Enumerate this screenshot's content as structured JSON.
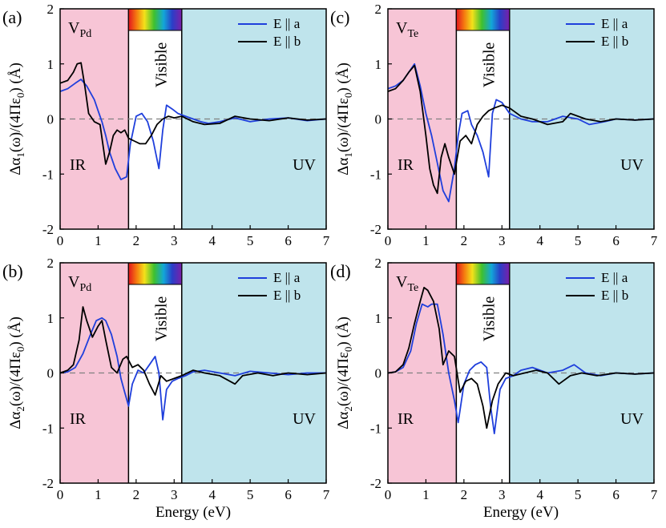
{
  "colors": {
    "ir_region": "#f7c5d6",
    "visible_region": "#ffffff",
    "uv_region": "#bfe4ec",
    "series_a": "#1f3fdc",
    "series_b": "#000000",
    "zero_line": "#808080"
  },
  "x_axis_title": "Energy (eV)",
  "y_axis_title_1": "Δα",
  "y_axis_title_2": "(ω)/(4Πε",
  "y_axis_title_3": ") (Å)",
  "chart_data": [
    {
      "type": "line",
      "panel_label": "(a)",
      "vacancy_main": "V",
      "vacancy_sub": "Pd",
      "y_sub": "1",
      "eps_sub": "0",
      "regions": [
        {
          "name": "IR",
          "x": [
            0,
            1.8
          ]
        },
        {
          "name": "Visible",
          "x": [
            1.8,
            3.2
          ]
        },
        {
          "name": "UV",
          "x": [
            3.2,
            7
          ]
        }
      ],
      "xlim": [
        0,
        7
      ],
      "ylim": [
        -2,
        2
      ],
      "xticks": [
        0,
        1,
        2,
        3,
        4,
        5,
        6,
        7
      ],
      "yticks": [
        -2,
        -1,
        0,
        1,
        2
      ],
      "legend_position": "top-right",
      "series": [
        {
          "name": "E || a",
          "x": [
            0,
            0.2,
            0.4,
            0.55,
            0.7,
            0.9,
            1.0,
            1.1,
            1.2,
            1.3,
            1.45,
            1.6,
            1.75,
            1.85,
            2.0,
            2.15,
            2.3,
            2.45,
            2.6,
            2.7,
            2.8,
            2.95,
            3.1,
            3.3,
            3.5,
            3.7,
            3.9,
            4.2,
            4.6,
            5.0,
            5.5,
            6.0,
            6.5,
            7.0
          ],
          "y": [
            0.5,
            0.55,
            0.65,
            0.72,
            0.6,
            0.35,
            0.15,
            -0.05,
            -0.3,
            -0.6,
            -0.9,
            -1.1,
            -1.05,
            -0.45,
            0.05,
            0.1,
            -0.05,
            -0.4,
            -0.9,
            -0.2,
            0.25,
            0.18,
            0.1,
            0.05,
            0.0,
            -0.05,
            -0.08,
            -0.05,
            0.02,
            -0.05,
            0.0,
            0.02,
            -0.03,
            0.0
          ]
        },
        {
          "name": "E || b",
          "x": [
            0,
            0.2,
            0.35,
            0.45,
            0.55,
            0.65,
            0.75,
            0.9,
            1.05,
            1.2,
            1.3,
            1.4,
            1.5,
            1.6,
            1.7,
            1.8,
            1.95,
            2.1,
            2.25,
            2.4,
            2.55,
            2.7,
            2.85,
            3.0,
            3.2,
            3.5,
            3.8,
            4.2,
            4.6,
            5.0,
            5.5,
            6.0,
            6.5,
            7.0
          ],
          "y": [
            0.65,
            0.7,
            0.85,
            1.0,
            1.02,
            0.6,
            0.1,
            -0.05,
            -0.1,
            -0.82,
            -0.6,
            -0.3,
            -0.2,
            -0.25,
            -0.2,
            -0.35,
            -0.4,
            -0.45,
            -0.45,
            -0.3,
            -0.1,
            0.0,
            0.05,
            0.02,
            0.05,
            -0.05,
            -0.1,
            -0.08,
            0.05,
            0.0,
            -0.03,
            0.02,
            -0.02,
            0.0
          ]
        }
      ]
    },
    {
      "type": "line",
      "panel_label": "(b)",
      "vacancy_main": "V",
      "vacancy_sub": "Pd",
      "y_sub": "2",
      "eps_sub": "0",
      "regions": [
        {
          "name": "IR",
          "x": [
            0,
            1.8
          ]
        },
        {
          "name": "Visible",
          "x": [
            1.8,
            3.2
          ]
        },
        {
          "name": "UV",
          "x": [
            3.2,
            7
          ]
        }
      ],
      "xlim": [
        0,
        7
      ],
      "ylim": [
        -2,
        2
      ],
      "xticks": [
        0,
        1,
        2,
        3,
        4,
        5,
        6,
        7
      ],
      "yticks": [
        -2,
        -1,
        0,
        1,
        2
      ],
      "legend_position": "top-right",
      "series": [
        {
          "name": "E || a",
          "x": [
            0,
            0.2,
            0.4,
            0.6,
            0.8,
            0.95,
            1.1,
            1.2,
            1.35,
            1.5,
            1.6,
            1.7,
            1.8,
            1.9,
            2.05,
            2.2,
            2.35,
            2.5,
            2.6,
            2.7,
            2.8,
            2.95,
            3.1,
            3.3,
            3.5,
            3.8,
            4.2,
            4.6,
            5.0,
            5.5,
            6.0,
            6.5,
            7.0
          ],
          "y": [
            0.0,
            0.02,
            0.1,
            0.35,
            0.7,
            0.95,
            1.0,
            0.95,
            0.7,
            0.3,
            -0.1,
            -0.35,
            -0.6,
            -0.2,
            0.05,
            0.0,
            0.15,
            0.3,
            0.0,
            -0.85,
            -0.3,
            -0.15,
            -0.1,
            -0.05,
            0.02,
            0.05,
            0.0,
            -0.05,
            0.03,
            0.0,
            -0.03,
            0.0,
            0.0
          ]
        },
        {
          "name": "E || b",
          "x": [
            0,
            0.2,
            0.35,
            0.5,
            0.6,
            0.7,
            0.85,
            1.0,
            1.1,
            1.2,
            1.35,
            1.5,
            1.65,
            1.75,
            1.9,
            2.05,
            2.2,
            2.35,
            2.5,
            2.65,
            2.8,
            3.0,
            3.2,
            3.5,
            3.8,
            4.2,
            4.6,
            4.8,
            5.2,
            5.6,
            6.0,
            6.5,
            7.0
          ],
          "y": [
            0.0,
            0.05,
            0.15,
            0.6,
            1.2,
            0.95,
            0.65,
            0.85,
            0.95,
            0.6,
            0.1,
            0.0,
            0.25,
            0.3,
            0.1,
            0.15,
            0.05,
            -0.2,
            -0.4,
            -0.05,
            -0.15,
            -0.1,
            -0.05,
            0.05,
            0.0,
            -0.05,
            -0.2,
            -0.05,
            0.0,
            -0.05,
            0.0,
            -0.03,
            0.0
          ]
        }
      ]
    },
    {
      "type": "line",
      "panel_label": "(c)",
      "vacancy_main": "V",
      "vacancy_sub": "Te",
      "y_sub": "1",
      "eps_sub": "0",
      "regions": [
        {
          "name": "IR",
          "x": [
            0,
            1.8
          ]
        },
        {
          "name": "Visible",
          "x": [
            1.8,
            3.2
          ]
        },
        {
          "name": "UV",
          "x": [
            3.2,
            7
          ]
        }
      ],
      "xlim": [
        0,
        7
      ],
      "ylim": [
        -2,
        2
      ],
      "xticks": [
        0,
        1,
        2,
        3,
        4,
        5,
        6,
        7
      ],
      "yticks": [
        -2,
        -1,
        0,
        1,
        2
      ],
      "legend_position": "top-right",
      "series": [
        {
          "name": "E || a",
          "x": [
            0,
            0.2,
            0.4,
            0.55,
            0.7,
            0.85,
            1.0,
            1.15,
            1.3,
            1.45,
            1.6,
            1.75,
            1.85,
            1.95,
            2.1,
            2.2,
            2.35,
            2.5,
            2.65,
            2.75,
            2.85,
            3.0,
            3.2,
            3.5,
            3.8,
            4.2,
            4.6,
            5.0,
            5.3,
            5.7,
            6.0,
            6.5,
            7.0
          ],
          "y": [
            0.55,
            0.6,
            0.7,
            0.85,
            1.0,
            0.6,
            0.1,
            -0.3,
            -0.8,
            -1.3,
            -1.5,
            -0.9,
            -0.3,
            0.1,
            0.15,
            -0.1,
            -0.3,
            -0.6,
            -1.05,
            0.1,
            0.35,
            0.3,
            0.1,
            0.0,
            -0.05,
            -0.05,
            0.05,
            0.0,
            -0.1,
            -0.05,
            0.0,
            -0.02,
            0.0
          ]
        },
        {
          "name": "E || b",
          "x": [
            0,
            0.2,
            0.4,
            0.55,
            0.7,
            0.85,
            1.0,
            1.1,
            1.2,
            1.3,
            1.4,
            1.5,
            1.6,
            1.75,
            1.9,
            2.05,
            2.2,
            2.35,
            2.5,
            2.65,
            2.8,
            3.0,
            3.2,
            3.5,
            3.8,
            4.2,
            4.6,
            4.8,
            5.2,
            5.6,
            6.0,
            6.5,
            7.0
          ],
          "y": [
            0.5,
            0.55,
            0.7,
            0.85,
            0.97,
            0.5,
            -0.3,
            -0.9,
            -1.2,
            -1.35,
            -0.7,
            -0.45,
            -0.7,
            -1.0,
            -0.4,
            -0.3,
            -0.45,
            -0.1,
            0.05,
            0.15,
            0.2,
            0.25,
            0.2,
            0.05,
            0.0,
            -0.1,
            -0.05,
            0.1,
            0.0,
            -0.05,
            0.0,
            -0.02,
            0.0
          ]
        }
      ]
    },
    {
      "type": "line",
      "panel_label": "(d)",
      "vacancy_main": "V",
      "vacancy_sub": "Te",
      "y_sub": "2",
      "eps_sub": "0",
      "regions": [
        {
          "name": "IR",
          "x": [
            0,
            1.8
          ]
        },
        {
          "name": "Visible",
          "x": [
            1.8,
            3.2
          ]
        },
        {
          "name": "UV",
          "x": [
            3.2,
            7
          ]
        }
      ],
      "xlim": [
        0,
        7
      ],
      "ylim": [
        -2,
        2
      ],
      "xticks": [
        0,
        1,
        2,
        3,
        4,
        5,
        6,
        7
      ],
      "yticks": [
        -2,
        -1,
        0,
        1,
        2
      ],
      "legend_position": "top-right",
      "series": [
        {
          "name": "E || a",
          "x": [
            0,
            0.2,
            0.4,
            0.6,
            0.75,
            0.9,
            1.05,
            1.15,
            1.3,
            1.45,
            1.6,
            1.75,
            1.85,
            2.0,
            2.15,
            2.3,
            2.45,
            2.6,
            2.7,
            2.8,
            2.95,
            3.1,
            3.3,
            3.5,
            3.8,
            4.2,
            4.6,
            4.9,
            5.2,
            5.6,
            6.0,
            6.5,
            7.0
          ],
          "y": [
            0.0,
            0.02,
            0.1,
            0.4,
            0.9,
            1.25,
            1.2,
            1.25,
            1.25,
            0.7,
            0.0,
            -0.5,
            -0.9,
            -0.2,
            0.05,
            0.15,
            0.2,
            0.1,
            -0.6,
            -1.1,
            -0.3,
            -0.1,
            -0.05,
            0.05,
            0.1,
            0.0,
            0.05,
            0.15,
            0.0,
            -0.05,
            0.0,
            -0.02,
            0.0
          ]
        },
        {
          "name": "E || b",
          "x": [
            0,
            0.2,
            0.4,
            0.55,
            0.7,
            0.85,
            0.95,
            1.05,
            1.2,
            1.35,
            1.45,
            1.6,
            1.75,
            1.9,
            2.05,
            2.2,
            2.35,
            2.5,
            2.6,
            2.75,
            2.9,
            3.1,
            3.3,
            3.6,
            3.9,
            4.2,
            4.5,
            4.8,
            5.1,
            5.5,
            6.0,
            6.5,
            7.0
          ],
          "y": [
            0.0,
            0.02,
            0.15,
            0.45,
            0.9,
            1.3,
            1.55,
            1.5,
            1.3,
            0.8,
            0.15,
            0.4,
            0.3,
            -0.35,
            -0.15,
            -0.1,
            -0.2,
            -0.6,
            -1.0,
            -0.5,
            -0.2,
            0.0,
            -0.05,
            0.0,
            0.05,
            0.0,
            -0.2,
            -0.05,
            0.0,
            -0.05,
            0.0,
            -0.02,
            0.0
          ]
        }
      ]
    }
  ]
}
